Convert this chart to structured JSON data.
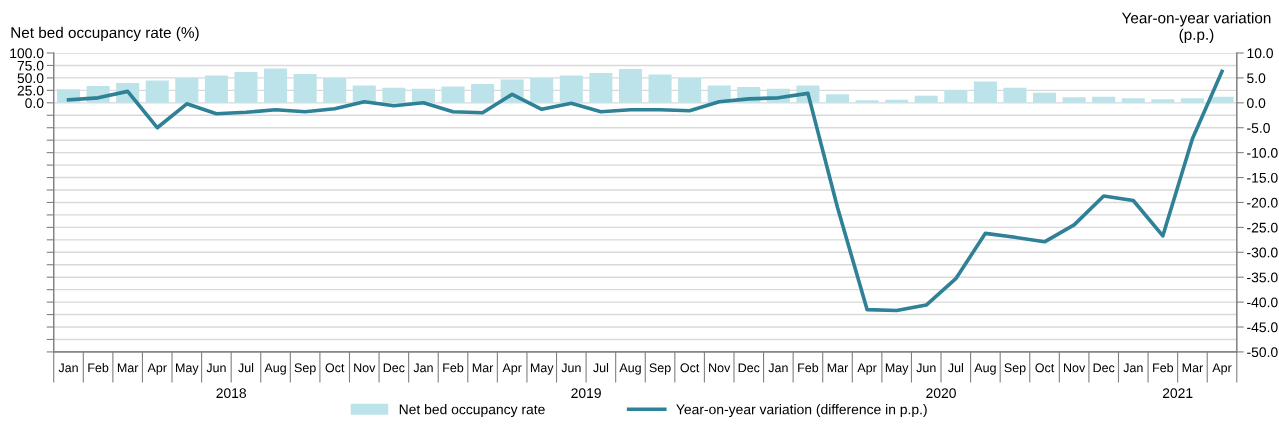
{
  "chart_data": {
    "type": "bar",
    "categories": [
      "Jan",
      "Feb",
      "Mar",
      "Apr",
      "May",
      "Jun",
      "Jul",
      "Aug",
      "Sep",
      "Oct",
      "Nov",
      "Dec",
      "Jan",
      "Feb",
      "Mar",
      "Apr",
      "May",
      "Jun",
      "Jul",
      "Aug",
      "Sep",
      "Oct",
      "Nov",
      "Dec",
      "Jan",
      "Feb",
      "Mar",
      "Apr",
      "May",
      "Jun",
      "Jul",
      "Aug",
      "Sep",
      "Oct",
      "Nov",
      "Dec",
      "Jan",
      "Feb",
      "Mar",
      "Apr"
    ],
    "series": [
      {
        "name": "Net bed occupancy rate",
        "color": "#bde3ea",
        "values": [
          27,
          34,
          40,
          45,
          50,
          55,
          62,
          69,
          58,
          50,
          35,
          30,
          28,
          33,
          38,
          47,
          50,
          55,
          60,
          68,
          57,
          50,
          35,
          32,
          28,
          35,
          17,
          5,
          6,
          14,
          25,
          43,
          30,
          20,
          11,
          12,
          9,
          7,
          9,
          12
        ]
      },
      {
        "name": "Year-on-year variation (difference in p.p.)",
        "type": "line",
        "axis": "y2",
        "color": "#2e8196",
        "values": [
          0.6,
          1.0,
          2.3,
          -5.0,
          -0.2,
          -2.2,
          -1.9,
          -1.4,
          -1.8,
          -1.2,
          0.2,
          -0.6,
          0.0,
          -1.8,
          -2.0,
          1.7,
          -1.3,
          -0.1,
          -1.8,
          -1.4,
          -1.4,
          -1.6,
          0.2,
          0.8,
          1.0,
          1.9,
          -21.0,
          -41.5,
          -41.7,
          -40.6,
          -35.3,
          -26.2,
          -27.0,
          -27.9,
          -24.5,
          -18.7,
          -19.6,
          -26.7,
          -7.2,
          6.3
        ]
      }
    ],
    "ylabel": "Net bed occupancy rate (%)",
    "y2label": "Year-on-year variation\n(p.p.)",
    "ylim": [
      -500,
      100
    ],
    "yticks": [
      {
        "value": 100,
        "label": "100.0"
      },
      {
        "value": 75,
        "label": "75.0"
      },
      {
        "value": 50,
        "label": "50.0"
      },
      {
        "value": 25,
        "label": "25.0"
      },
      {
        "value": 0,
        "label": "0.0"
      },
      {
        "value": -25,
        "label": null
      },
      {
        "value": -50,
        "label": null
      },
      {
        "value": -75,
        "label": null
      },
      {
        "value": -100,
        "label": null
      },
      {
        "value": -125,
        "label": null
      },
      {
        "value": -150,
        "label": null
      },
      {
        "value": -175,
        "label": null
      },
      {
        "value": -200,
        "label": null
      },
      {
        "value": -225,
        "label": null
      },
      {
        "value": -250,
        "label": null
      },
      {
        "value": -275,
        "label": null
      },
      {
        "value": -300,
        "label": null
      },
      {
        "value": -325,
        "label": null
      },
      {
        "value": -350,
        "label": null
      },
      {
        "value": -375,
        "label": null
      },
      {
        "value": -400,
        "label": null
      },
      {
        "value": -425,
        "label": null
      },
      {
        "value": -450,
        "label": null
      },
      {
        "value": -475,
        "label": null
      },
      {
        "value": -500,
        "label": null
      }
    ],
    "y2lim": [
      -50,
      10
    ],
    "y2ticks": [
      {
        "value": 10,
        "label": "10.0"
      },
      {
        "value": 5,
        "label": "5.0"
      },
      {
        "value": 0,
        "label": "0.0"
      },
      {
        "value": -5,
        "label": "-5.0"
      },
      {
        "value": -10,
        "label": "-10.0"
      },
      {
        "value": -15,
        "label": "-15.0"
      },
      {
        "value": -20,
        "label": "-20.0"
      },
      {
        "value": -25,
        "label": "-25.0"
      },
      {
        "value": -30,
        "label": "-30.0"
      },
      {
        "value": -35,
        "label": "-35.0"
      },
      {
        "value": -40,
        "label": "-40.0"
      },
      {
        "value": -45,
        "label": "-45.0"
      },
      {
        "value": -50,
        "label": "-50.0"
      }
    ],
    "annotations": [
      "2018",
      "2019",
      "2020",
      "2021"
    ],
    "grid": "y",
    "legend": "bottom",
    "marker": "none",
    "line_style": "solid"
  }
}
